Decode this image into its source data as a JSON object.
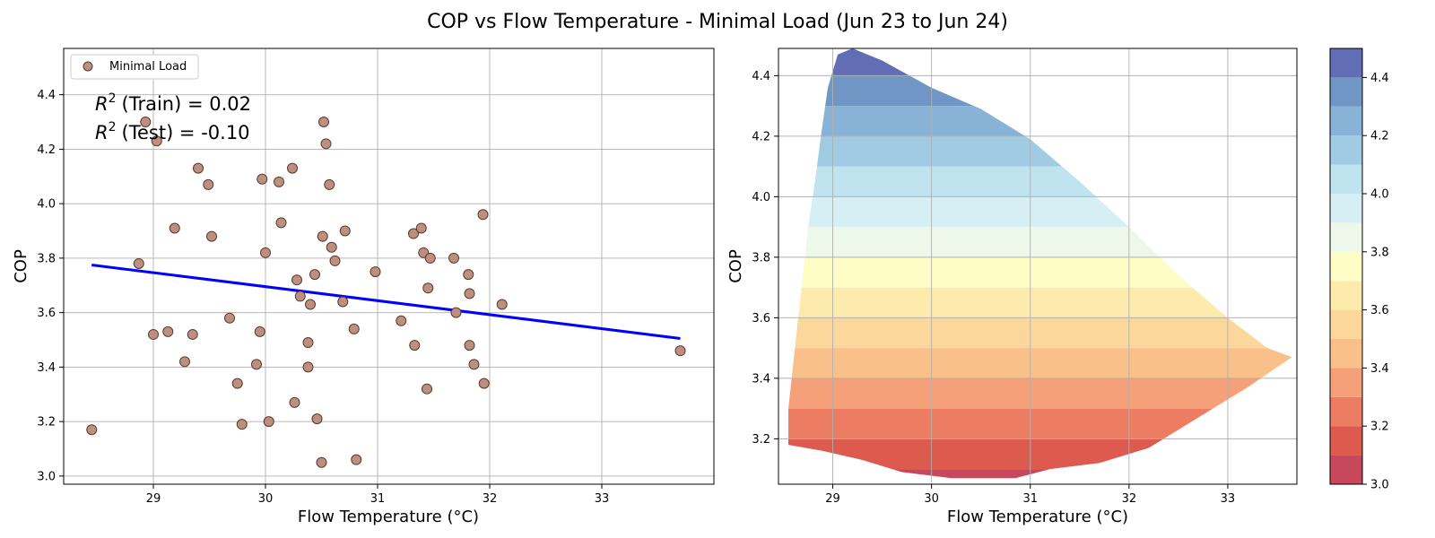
{
  "figure": {
    "title": "COP vs Flow Temperature - Minimal Load (Jun 23 to Jun 24)"
  },
  "chart_data": [
    {
      "type": "scatter",
      "xlabel": "Flow Temperature (°C)",
      "ylabel": "COP",
      "xlim": [
        28.2,
        34.0
      ],
      "ylim": [
        2.97,
        4.57
      ],
      "xticks": [
        29,
        30,
        31,
        32,
        33
      ],
      "yticks": [
        3.0,
        3.2,
        3.4,
        3.6,
        3.8,
        4.0,
        4.2,
        4.4
      ],
      "grid": true,
      "legend_position": "top-left",
      "legend": "Minimal Load",
      "annotations": [
        "(Train) = 0.02",
        "(Test) = -0.10"
      ],
      "colors": {
        "points": "#bc8f7f",
        "point_edge": "#5a3a2e",
        "regression": "#0000ff"
      },
      "series": [
        {
          "name": "Minimal Load",
          "points": [
            [
              28.45,
              3.17
            ],
            [
              28.87,
              3.78
            ],
            [
              28.93,
              4.3
            ],
            [
              29.0,
              3.52
            ],
            [
              29.03,
              4.23
            ],
            [
              29.13,
              3.53
            ],
            [
              29.19,
              3.91
            ],
            [
              29.28,
              3.42
            ],
            [
              29.35,
              3.52
            ],
            [
              29.4,
              4.13
            ],
            [
              29.49,
              4.07
            ],
            [
              29.52,
              3.88
            ],
            [
              29.68,
              3.58
            ],
            [
              29.75,
              3.34
            ],
            [
              29.79,
              3.19
            ],
            [
              29.92,
              3.41
            ],
            [
              29.95,
              3.53
            ],
            [
              29.97,
              4.09
            ],
            [
              30.0,
              3.82
            ],
            [
              30.03,
              3.2
            ],
            [
              30.12,
              4.08
            ],
            [
              30.14,
              3.93
            ],
            [
              30.24,
              4.13
            ],
            [
              30.26,
              3.27
            ],
            [
              30.28,
              3.72
            ],
            [
              30.31,
              3.66
            ],
            [
              30.38,
              3.49
            ],
            [
              30.38,
              3.4
            ],
            [
              30.4,
              3.63
            ],
            [
              30.44,
              3.74
            ],
            [
              30.46,
              3.21
            ],
            [
              30.5,
              3.05
            ],
            [
              30.51,
              3.88
            ],
            [
              30.52,
              4.3
            ],
            [
              30.54,
              4.22
            ],
            [
              30.57,
              4.07
            ],
            [
              30.59,
              3.84
            ],
            [
              30.62,
              3.79
            ],
            [
              30.69,
              3.64
            ],
            [
              30.71,
              3.9
            ],
            [
              30.79,
              3.54
            ],
            [
              30.81,
              3.06
            ],
            [
              30.98,
              3.75
            ],
            [
              31.21,
              3.57
            ],
            [
              31.32,
              3.89
            ],
            [
              31.33,
              3.48
            ],
            [
              31.39,
              3.91
            ],
            [
              31.41,
              3.82
            ],
            [
              31.44,
              3.32
            ],
            [
              31.45,
              3.69
            ],
            [
              31.47,
              3.8
            ],
            [
              31.68,
              3.8
            ],
            [
              31.7,
              3.6
            ],
            [
              31.81,
              3.74
            ],
            [
              31.82,
              3.67
            ],
            [
              31.82,
              3.48
            ],
            [
              31.86,
              3.41
            ],
            [
              31.94,
              3.96
            ],
            [
              31.95,
              3.34
            ],
            [
              32.11,
              3.63
            ],
            [
              33.7,
              3.46
            ]
          ]
        },
        {
          "name": "regression",
          "x": [
            28.45,
            33.7
          ],
          "y": [
            3.775,
            3.505
          ]
        }
      ]
    },
    {
      "type": "heatmap",
      "subtype": "filled-contour",
      "xlabel": "Flow Temperature (°C)",
      "ylabel": "COP",
      "xlim": [
        28.45,
        33.7
      ],
      "ylim": [
        3.05,
        4.49
      ],
      "xticks": [
        29,
        30,
        31,
        32,
        33
      ],
      "yticks": [
        3.2,
        3.4,
        3.6,
        3.8,
        4.0,
        4.2,
        4.4
      ],
      "grid": true,
      "colormap": "RdYlBu",
      "colorbar": {
        "range": [
          3.0,
          4.5
        ],
        "ticks": [
          3.0,
          3.2,
          3.4,
          3.6,
          3.8,
          4.0,
          4.2,
          4.4
        ],
        "levels": [
          3.0,
          3.1,
          3.2,
          3.3,
          3.4,
          3.5,
          3.6,
          3.7,
          3.8,
          3.9,
          4.0,
          4.1,
          4.2,
          4.3,
          4.4,
          4.5
        ],
        "colors": [
          "#c6485a",
          "#dc5a4e",
          "#ed7d62",
          "#f6a07a",
          "#fac08a",
          "#fcd79b",
          "#fdebae",
          "#fefdc6",
          "#eef8ea",
          "#d6eff4",
          "#bfe3ef",
          "#a0cbe2",
          "#88b2d6",
          "#7096c6",
          "#616db5"
        ]
      },
      "region_boundary": {
        "left": [
          [
            28.55,
            3.18
          ],
          [
            28.55,
            3.3
          ],
          [
            28.6,
            3.45
          ],
          [
            28.65,
            3.6
          ],
          [
            28.7,
            3.75
          ],
          [
            28.75,
            3.9
          ],
          [
            28.82,
            4.05
          ],
          [
            28.88,
            4.2
          ],
          [
            28.95,
            4.36
          ],
          [
            29.05,
            4.47
          ],
          [
            29.2,
            4.49
          ]
        ],
        "upper": [
          [
            29.2,
            4.49
          ],
          [
            29.5,
            4.45
          ],
          [
            30.0,
            4.36
          ],
          [
            30.5,
            4.29
          ],
          [
            31.0,
            4.19
          ],
          [
            31.5,
            4.05
          ],
          [
            32.0,
            3.9
          ],
          [
            32.5,
            3.74
          ],
          [
            33.0,
            3.6
          ],
          [
            33.4,
            3.5
          ],
          [
            33.65,
            3.47
          ]
        ],
        "lower": [
          [
            33.65,
            3.47
          ],
          [
            33.2,
            3.37
          ],
          [
            32.7,
            3.27
          ],
          [
            32.2,
            3.17
          ],
          [
            31.7,
            3.12
          ],
          [
            31.2,
            3.1
          ],
          [
            30.85,
            3.07
          ],
          [
            30.2,
            3.07
          ],
          [
            29.7,
            3.09
          ],
          [
            29.3,
            3.13
          ],
          [
            28.9,
            3.16
          ],
          [
            28.55,
            3.18
          ]
        ]
      }
    }
  ]
}
